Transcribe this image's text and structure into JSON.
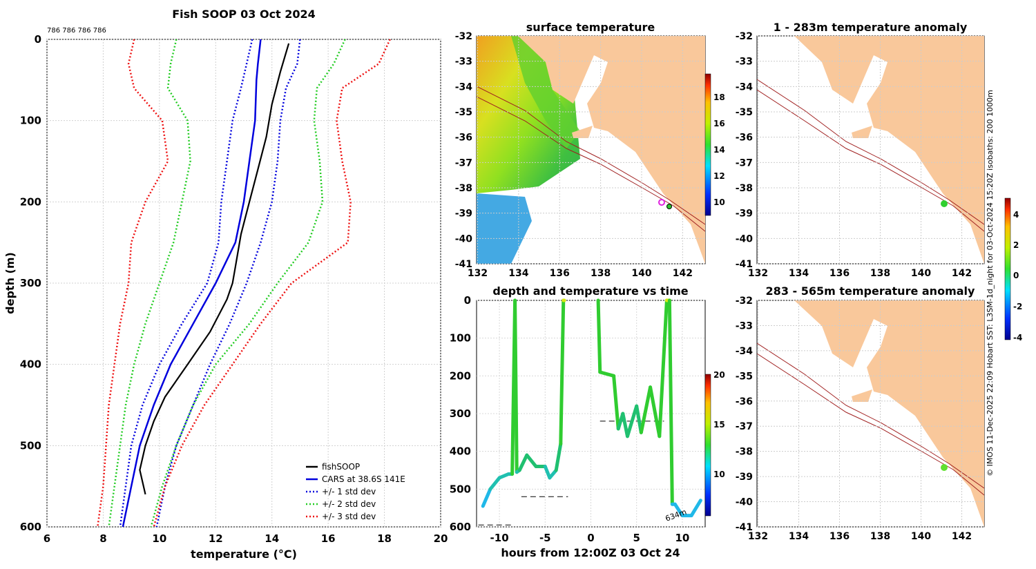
{
  "profile": {
    "title": "Fish SOOP 03 Oct 2024",
    "top_note": "786 786 786 786",
    "xlabel": "temperature (°C)",
    "ylabel": "depth (m)",
    "xlim": [
      6,
      20
    ],
    "ylim": [
      0,
      600
    ],
    "xticks": [
      "6",
      "8",
      "10",
      "12",
      "14",
      "16",
      "18",
      "20"
    ],
    "yticks": [
      "0",
      "100",
      "200",
      "300",
      "400",
      "500",
      "600"
    ],
    "legend": [
      {
        "label": "fishSOOP",
        "color": "#000000",
        "dash": false
      },
      {
        "label": "CARS at 38.6S 141E",
        "color": "#0000dd",
        "dash": false
      },
      {
        "label": "+/- 1 std dev",
        "color": "#0000dd",
        "dash": true
      },
      {
        "label": "+/- 2 std dev",
        "color": "#22cc22",
        "dash": true
      },
      {
        "label": "+/- 3 std dev",
        "color": "#ee1111",
        "dash": true
      }
    ]
  },
  "sst_map": {
    "title": "surface temperature",
    "xticks": [
      "132",
      "134",
      "136",
      "138",
      "140",
      "142"
    ],
    "yticks": [
      "-32",
      "-33",
      "-34",
      "-35",
      "-36",
      "-37",
      "-38",
      "-39",
      "-40",
      "-41"
    ],
    "colorbar_ticks": [
      "18",
      "16",
      "14",
      "12",
      "10"
    ]
  },
  "time_series": {
    "title": "depth and temperature vs time",
    "xlabel": "hours from 12:00Z 03 Oct 24",
    "xticks": [
      "-10",
      "-5",
      "0",
      "5",
      "10"
    ],
    "yticks": [
      "0",
      "100",
      "200",
      "300",
      "400",
      "500",
      "600"
    ],
    "colorbar_ticks": [
      "20",
      "15",
      "10"
    ],
    "annotation": "634m"
  },
  "anom_top": {
    "title": "1 - 283m temperature anomaly",
    "xticks": [
      "132",
      "134",
      "136",
      "138",
      "140",
      "142"
    ],
    "yticks": [
      "-32",
      "-33",
      "-34",
      "-35",
      "-36",
      "-37",
      "-38",
      "-39",
      "-40",
      "-41"
    ]
  },
  "anom_bottom": {
    "title": "283 - 565m temperature anomaly",
    "xticks": [
      "132",
      "134",
      "136",
      "138",
      "140",
      "142"
    ],
    "yticks": [
      "-32",
      "-33",
      "-34",
      "-35",
      "-36",
      "-37",
      "-38",
      "-39",
      "-40",
      "-41"
    ]
  },
  "anom_colorbar_ticks": [
    "4",
    "2",
    "0",
    "-2",
    "-4"
  ],
  "side_caption": "© IMOS 11-Dec-2025 22:09 Hobart SST: L3SM-1d_night for 03-Oct-2024 15:20Z isobaths: 200  1000m",
  "chart_data": [
    {
      "type": "line",
      "title": "Fish SOOP 03 Oct 2024",
      "xlabel": "temperature (°C)",
      "ylabel": "depth (m)",
      "xlim": [
        6,
        20
      ],
      "ylim": [
        600,
        0
      ],
      "series": [
        {
          "name": "CARS at 38.6S 141E",
          "x": [
            13.6,
            13.5,
            13.45,
            13.4,
            13.2,
            13.0,
            12.7,
            12.0,
            11.2,
            10.4,
            9.8,
            9.3,
            9.0,
            8.7
          ],
          "y": [
            0,
            30,
            50,
            100,
            150,
            200,
            250,
            300,
            350,
            400,
            450,
            500,
            550,
            600
          ]
        },
        {
          "name": "+/- 1 std dev (low)",
          "x": [
            13.3,
            13.1,
            12.9,
            12.6,
            12.4,
            12.2,
            12.1,
            11.7,
            10.8,
            10.0,
            9.4,
            9.0,
            8.8,
            8.6
          ],
          "y": [
            0,
            30,
            60,
            100,
            150,
            200,
            250,
            300,
            350,
            400,
            450,
            500,
            550,
            600
          ]
        },
        {
          "name": "+/- 1 std dev (high)",
          "x": [
            15.0,
            14.9,
            14.5,
            14.3,
            14.2,
            14.0,
            13.6,
            13.1,
            12.5,
            11.8,
            11.2,
            10.6,
            10.2,
            9.9
          ],
          "y": [
            0,
            30,
            60,
            100,
            150,
            200,
            250,
            300,
            350,
            400,
            450,
            500,
            550,
            600
          ]
        },
        {
          "name": "+/- 2 std dev (low)",
          "x": [
            10.6,
            10.4,
            10.3,
            11.0,
            11.1,
            10.8,
            10.5,
            10.0,
            9.5,
            9.1,
            8.8,
            8.6,
            8.4,
            8.2
          ],
          "y": [
            0,
            30,
            60,
            100,
            150,
            200,
            250,
            300,
            350,
            400,
            450,
            500,
            550,
            600
          ]
        },
        {
          "name": "+/- 2 std dev (high)",
          "x": [
            16.6,
            16.2,
            15.6,
            15.5,
            15.7,
            15.8,
            15.3,
            14.2,
            13.2,
            12.0,
            11.2,
            10.6,
            10.1,
            9.7
          ],
          "y": [
            0,
            30,
            60,
            100,
            150,
            200,
            250,
            300,
            350,
            400,
            450,
            500,
            550,
            600
          ]
        },
        {
          "name": "+/- 3 std dev (low)",
          "x": [
            9.1,
            8.9,
            9.1,
            10.1,
            10.3,
            9.5,
            9.0,
            8.9,
            8.6,
            8.4,
            8.2,
            8.1,
            8.0,
            7.8
          ],
          "y": [
            0,
            30,
            60,
            100,
            150,
            200,
            250,
            300,
            350,
            400,
            450,
            500,
            550,
            600
          ]
        },
        {
          "name": "+/- 3 std dev (high)",
          "x": [
            18.2,
            17.8,
            16.5,
            16.3,
            16.5,
            16.8,
            16.7,
            14.7,
            13.6,
            12.6,
            11.6,
            10.8,
            10.2,
            9.8
          ],
          "y": [
            0,
            30,
            60,
            100,
            150,
            200,
            250,
            300,
            350,
            400,
            450,
            500,
            550,
            600
          ]
        },
        {
          "name": "fishSOOP",
          "x": [
            14.6,
            14.3,
            14.0,
            13.8,
            13.5,
            13.2,
            12.9,
            12.7,
            12.6,
            12.4,
            11.8,
            11.0,
            10.2,
            9.8,
            9.5,
            9.3,
            9.5
          ],
          "y": [
            5,
            40,
            80,
            120,
            160,
            200,
            240,
            280,
            300,
            320,
            360,
            400,
            440,
            470,
            500,
            530,
            560
          ]
        }
      ]
    },
    {
      "type": "scatter",
      "title": "depth and temperature vs time",
      "xlabel": "hours from 12:00Z 03 Oct 24",
      "xlim": [
        -12.5,
        12.5
      ],
      "ylim": [
        600,
        0
      ],
      "series": [
        {
          "name": "depth",
          "x": [
            -11.8,
            -11.0,
            -10.0,
            -9.0,
            -8.6,
            -8.3,
            -8.1,
            -7.8,
            -7.0,
            -6.0,
            -5.0,
            -4.5,
            -3.8,
            -3.3,
            -3.0,
            -2.9
          ],
          "y": [
            545,
            500,
            470,
            460,
            460,
            0,
            455,
            450,
            410,
            440,
            440,
            470,
            450,
            380,
            0,
            0
          ]
        },
        {
          "name": "depth (segment 2)",
          "x": [
            0.8,
            1.0,
            2.5,
            3.0,
            3.5,
            4.0,
            5.0,
            5.5,
            6.5,
            7.5,
            8.3,
            8.6,
            8.9,
            9.2,
            10.0,
            11.0,
            12.0
          ],
          "y": [
            0,
            190,
            200,
            340,
            300,
            360,
            280,
            350,
            230,
            360,
            0,
            0,
            540,
            540,
            570,
            570,
            530
          ]
        }
      ]
    }
  ]
}
